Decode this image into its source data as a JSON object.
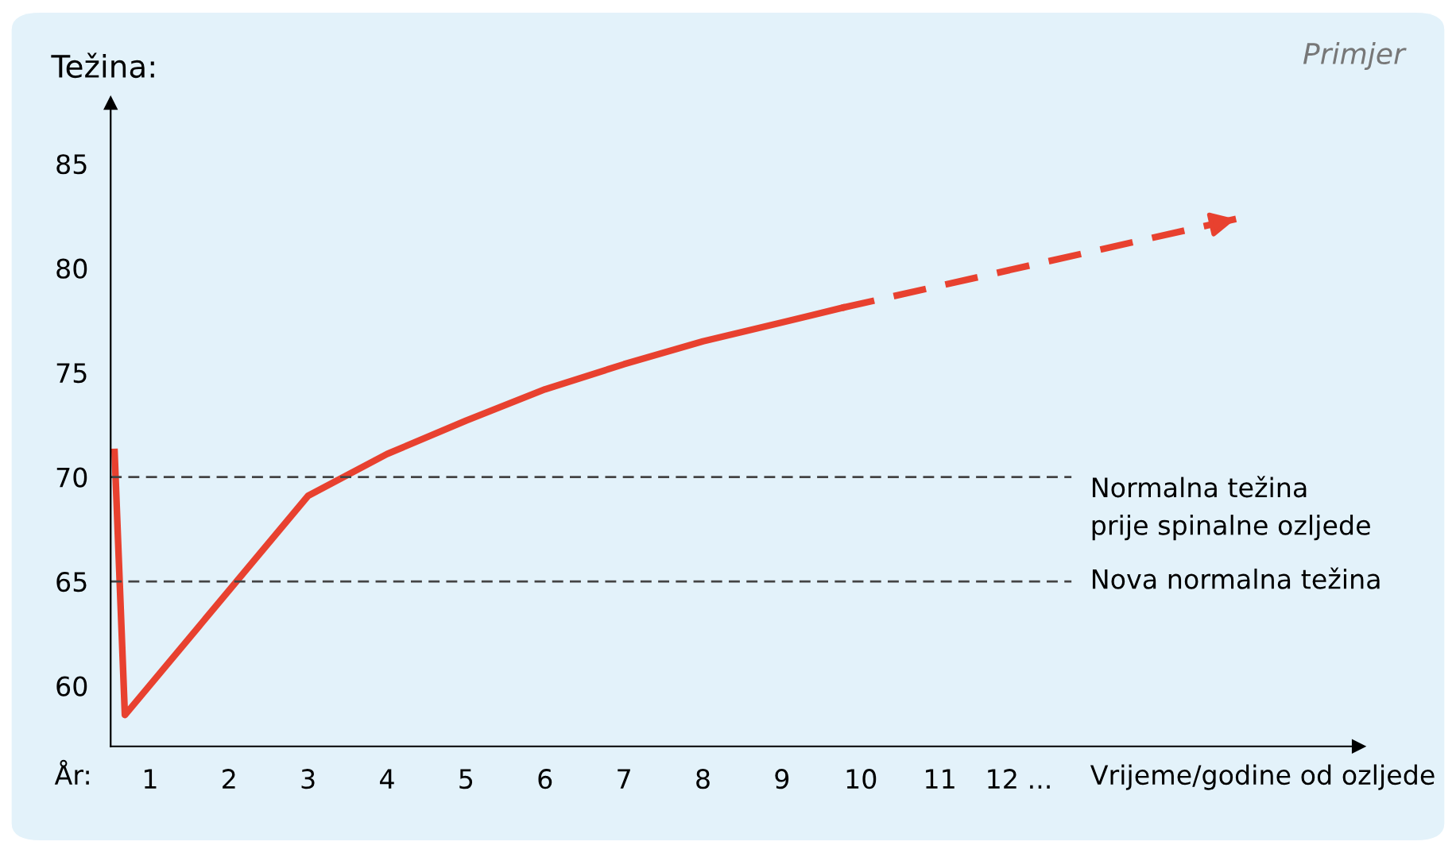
{
  "chart_data": {
    "type": "line",
    "ylabel": "Težina:",
    "xlabel": "Vrijeme/godine od ozljede",
    "annotations": [
      "Primjer",
      "År:"
    ],
    "xlim": [
      0.5,
      16.3
    ],
    "ylim": [
      57.1,
      87.9
    ],
    "xticks": [
      1,
      2,
      3,
      4,
      5,
      6,
      7,
      8,
      9,
      10,
      11,
      {
        "value": 12,
        "label": "12 ..."
      }
    ],
    "yticks": [
      60,
      65,
      70,
      75,
      80,
      85
    ],
    "series": [
      {
        "color": "#e8412f",
        "line_style": "solid",
        "x": [
          0.55,
          0.68,
          3,
          4,
          5,
          6,
          7,
          8,
          9,
          9.76
        ],
        "values": [
          71.2,
          58.6,
          69.1,
          71.1,
          72.7,
          74.2,
          75.4,
          76.5,
          77.4,
          78.1
        ]
      },
      {
        "color": "#e8412f",
        "line_style": "dashed",
        "x": [
          9.76,
          14.8
        ],
        "values": [
          78.1,
          82.4
        ]
      }
    ],
    "ref_lines": [
      {
        "axis": "y",
        "value": 70,
        "label": "Normalna težina\nprije spinalne ozljede",
        "color": "#444444",
        "line_style": "dashed"
      },
      {
        "axis": "y",
        "value": 65,
        "label": "Nova normalna težina",
        "color": "#444444",
        "line_style": "dashed"
      }
    ],
    "grid": false,
    "legend": false
  }
}
